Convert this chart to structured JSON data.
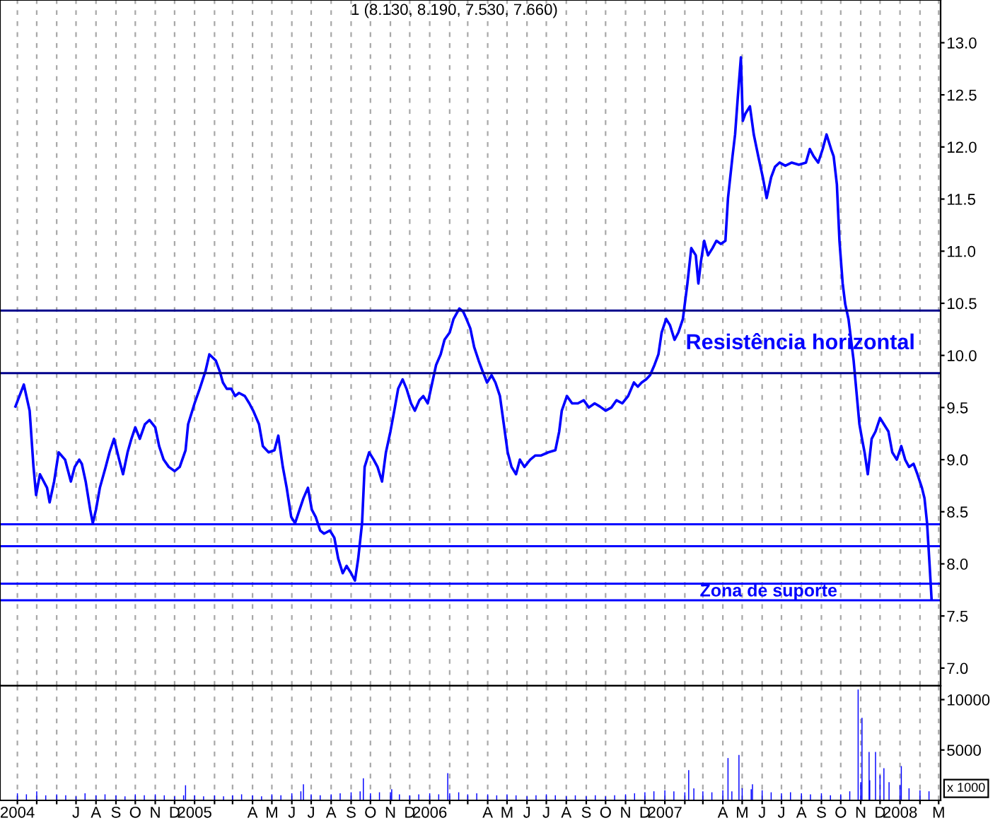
{
  "chart_data": [
    {
      "type": "line",
      "title": "1 (8.130, 8.190, 7.530, 7.660)",
      "xlim": [
        "2004-03-05",
        "2008-03-04"
      ],
      "ylim": [
        6.83,
        13.41
      ],
      "yticks": [
        {
          "value": 7.0,
          "label": "7.0"
        },
        {
          "value": 7.5,
          "label": "7.5"
        },
        {
          "value": 8.0,
          "label": "8.0"
        },
        {
          "value": 8.5,
          "label": "8.5"
        },
        {
          "value": 9.0,
          "label": "9.0"
        },
        {
          "value": 9.5,
          "label": "9.5"
        },
        {
          "value": 10.0,
          "label": "10.0"
        },
        {
          "value": 10.5,
          "label": "10.5"
        },
        {
          "value": 11.0,
          "label": "11.0"
        },
        {
          "value": 11.5,
          "label": "11.5"
        },
        {
          "value": 12.0,
          "label": "12.0"
        },
        {
          "value": 12.5,
          "label": "12.5"
        },
        {
          "value": 13.0,
          "label": "13.0"
        }
      ],
      "xticks": [
        {
          "value": "2004-04-01",
          "label": null
        },
        {
          "value": "2004-05-01",
          "label": null
        },
        {
          "value": "2004-06-01",
          "label": null
        },
        {
          "value": "2004-07-01",
          "label": null
        },
        {
          "value": "2004-08-01",
          "label": null
        },
        {
          "value": "2004-09-01",
          "label": null
        },
        {
          "value": "2004-10-01",
          "label": null
        },
        {
          "value": "2004-11-01",
          "label": null
        },
        {
          "value": "2004-12-01",
          "label": null
        },
        {
          "value": "2005-01-01",
          "label": null
        },
        {
          "value": "2005-02-01",
          "label": null
        },
        {
          "value": "2005-03-01",
          "label": null
        },
        {
          "value": "2005-04-01",
          "label": null
        },
        {
          "value": "2005-05-01",
          "label": null
        },
        {
          "value": "2005-06-01",
          "label": null
        },
        {
          "value": "2005-07-01",
          "label": null
        },
        {
          "value": "2005-08-01",
          "label": null
        },
        {
          "value": "2005-09-01",
          "label": null
        },
        {
          "value": "2005-10-01",
          "label": null
        },
        {
          "value": "2005-11-01",
          "label": null
        },
        {
          "value": "2005-12-01",
          "label": null
        },
        {
          "value": "2006-01-01",
          "label": null
        },
        {
          "value": "2006-02-01",
          "label": null
        },
        {
          "value": "2006-03-01",
          "label": null
        },
        {
          "value": "2006-04-01",
          "label": null
        },
        {
          "value": "2006-05-01",
          "label": null
        },
        {
          "value": "2006-06-01",
          "label": null
        },
        {
          "value": "2006-07-01",
          "label": null
        },
        {
          "value": "2006-08-01",
          "label": null
        },
        {
          "value": "2006-09-01",
          "label": null
        },
        {
          "value": "2006-10-01",
          "label": null
        },
        {
          "value": "2006-11-01",
          "label": null
        },
        {
          "value": "2006-12-01",
          "label": null
        },
        {
          "value": "2007-01-01",
          "label": null
        },
        {
          "value": "2007-02-01",
          "label": null
        },
        {
          "value": "2007-03-01",
          "label": null
        },
        {
          "value": "2007-04-01",
          "label": null
        },
        {
          "value": "2007-05-01",
          "label": null
        },
        {
          "value": "2007-06-01",
          "label": null
        },
        {
          "value": "2007-07-01",
          "label": null
        },
        {
          "value": "2007-08-01",
          "label": null
        },
        {
          "value": "2007-09-01",
          "label": null
        },
        {
          "value": "2007-10-01",
          "label": null
        },
        {
          "value": "2007-11-01",
          "label": null
        },
        {
          "value": "2007-12-01",
          "label": null
        },
        {
          "value": "2008-01-01",
          "label": null
        },
        {
          "value": "2008-02-01",
          "label": null
        },
        {
          "value": "2008-03-01",
          "label": null
        }
      ],
      "tick_labels": "y",
      "grid": "x",
      "series": [
        {
          "color": "#0000ff",
          "x": [
            "2004-03-29",
            "2004-04-11",
            "2004-04-20",
            "2004-04-26",
            "2004-04-30",
            "2004-05-06",
            "2004-05-17",
            "2004-05-21",
            "2004-05-28",
            "2004-06-04",
            "2004-06-14",
            "2004-06-23",
            "2004-06-29",
            "2004-07-06",
            "2004-07-10",
            "2004-07-16",
            "2004-07-23",
            "2004-07-27",
            "2004-08-01",
            "2004-08-07",
            "2004-08-16",
            "2004-08-22",
            "2004-08-29",
            "2004-09-06",
            "2004-09-12",
            "2004-09-19",
            "2004-09-25",
            "2004-10-01",
            "2004-10-08",
            "2004-10-16",
            "2004-10-23",
            "2004-11-01",
            "2004-11-07",
            "2004-11-14",
            "2004-11-22",
            "2004-12-01",
            "2004-12-09",
            "2004-12-18",
            "2004-12-22",
            "2005-01-01",
            "2005-01-09",
            "2005-01-18",
            "2005-01-24",
            "2005-02-03",
            "2005-02-09",
            "2005-02-14",
            "2005-02-20",
            "2005-02-27",
            "2005-03-05",
            "2005-03-11",
            "2005-03-20",
            "2005-03-27",
            "2005-04-02",
            "2005-04-11",
            "2005-04-17",
            "2005-04-26",
            "2005-05-05",
            "2005-05-11",
            "2005-05-18",
            "2005-05-24",
            "2005-05-31",
            "2005-06-06",
            "2005-06-13",
            "2005-06-19",
            "2005-06-26",
            "2005-07-02",
            "2005-07-08",
            "2005-07-15",
            "2005-07-21",
            "2005-07-30",
            "2005-08-06",
            "2005-08-12",
            "2005-08-19",
            "2005-08-25",
            "2005-09-01",
            "2005-09-07",
            "2005-09-12",
            "2005-09-18",
            "2005-09-22",
            "2005-09-29",
            "2005-10-06",
            "2005-10-12",
            "2005-10-19",
            "2005-10-25",
            "2005-11-01",
            "2005-11-07",
            "2005-11-13",
            "2005-11-20",
            "2005-11-26",
            "2005-12-03",
            "2005-12-09",
            "2005-12-16",
            "2005-12-22",
            "2005-12-29",
            "2006-01-05",
            "2006-01-11",
            "2006-01-18",
            "2006-01-24",
            "2006-02-01",
            "2006-02-07",
            "2006-02-16",
            "2006-02-22",
            "2006-02-27",
            "2006-03-05",
            "2006-03-11",
            "2006-03-18",
            "2006-03-24",
            "2006-03-31",
            "2006-04-07",
            "2006-04-13",
            "2006-04-20",
            "2006-04-26",
            "2006-05-02",
            "2006-05-08",
            "2006-05-15",
            "2006-05-21",
            "2006-05-28",
            "2006-06-06",
            "2006-06-14",
            "2006-06-23",
            "2006-07-04",
            "2006-07-15",
            "2006-07-21",
            "2006-07-25",
            "2006-08-02",
            "2006-08-10",
            "2006-08-19",
            "2006-08-28",
            "2006-09-05",
            "2006-09-14",
            "2006-09-22",
            "2006-10-01",
            "2006-10-10",
            "2006-10-18",
            "2006-10-27",
            "2006-11-05",
            "2006-11-14",
            "2006-11-20",
            "2006-11-26",
            "2006-12-03",
            "2006-12-09",
            "2006-12-16",
            "2006-12-22",
            "2006-12-27",
            "2007-01-03",
            "2007-01-09",
            "2007-01-16",
            "2007-01-22",
            "2007-01-29",
            "2007-02-05",
            "2007-02-11",
            "2007-02-18",
            "2007-02-22",
            "2007-02-26",
            "2007-03-03",
            "2007-03-09",
            "2007-03-16",
            "2007-03-22",
            "2007-03-29",
            "2007-04-05",
            "2007-04-09",
            "2007-04-16",
            "2007-04-20",
            "2007-04-24",
            "2007-04-29",
            "2007-05-02",
            "2007-05-06",
            "2007-05-13",
            "2007-05-19",
            "2007-05-26",
            "2007-06-02",
            "2007-06-08",
            "2007-06-15",
            "2007-06-21",
            "2007-06-28",
            "2007-07-07",
            "2007-07-17",
            "2007-07-28",
            "2007-08-08",
            "2007-08-14",
            "2007-08-20",
            "2007-08-27",
            "2007-09-03",
            "2007-09-09",
            "2007-09-16",
            "2007-09-20",
            "2007-09-25",
            "2007-09-29",
            "2007-10-04",
            "2007-10-08",
            "2007-10-13",
            "2007-10-17",
            "2007-10-21",
            "2007-10-26",
            "2007-10-30",
            "2007-11-03",
            "2007-11-07",
            "2007-11-12",
            "2007-11-18",
            "2007-11-24",
            "2007-12-01",
            "2007-12-07",
            "2007-12-14",
            "2007-12-20",
            "2007-12-27",
            "2008-01-03",
            "2008-01-09",
            "2008-01-15",
            "2008-01-22",
            "2008-01-28",
            "2008-02-04",
            "2008-02-08",
            "2008-02-12",
            "2008-02-16",
            "2008-02-19"
          ],
          "values": [
            9.51,
            9.72,
            9.47,
            8.93,
            8.66,
            8.86,
            8.73,
            8.59,
            8.79,
            9.07,
            9.0,
            8.79,
            8.93,
            9.0,
            8.96,
            8.79,
            8.52,
            8.39,
            8.52,
            8.73,
            8.93,
            9.07,
            9.2,
            9.0,
            8.86,
            9.07,
            9.2,
            9.31,
            9.2,
            9.34,
            9.38,
            9.31,
            9.13,
            9.0,
            8.93,
            8.89,
            8.93,
            9.09,
            9.34,
            9.54,
            9.68,
            9.85,
            10.01,
            9.95,
            9.85,
            9.74,
            9.68,
            9.68,
            9.61,
            9.64,
            9.61,
            9.54,
            9.47,
            9.34,
            9.13,
            9.07,
            9.09,
            9.23,
            8.93,
            8.73,
            8.45,
            8.39,
            8.52,
            8.63,
            8.73,
            8.52,
            8.45,
            8.32,
            8.29,
            8.32,
            8.25,
            8.05,
            7.91,
            7.98,
            7.91,
            7.84,
            8.05,
            8.39,
            8.93,
            9.07,
            9.0,
            8.93,
            8.79,
            9.07,
            9.27,
            9.47,
            9.68,
            9.77,
            9.68,
            9.54,
            9.47,
            9.57,
            9.61,
            9.54,
            9.74,
            9.91,
            10.01,
            10.15,
            10.22,
            10.35,
            10.45,
            10.42,
            10.35,
            10.26,
            10.08,
            9.95,
            9.85,
            9.74,
            9.81,
            9.74,
            9.61,
            9.34,
            9.07,
            8.93,
            8.86,
            9.0,
            8.93,
            9.0,
            9.04,
            9.04,
            9.07,
            9.09,
            9.27,
            9.47,
            9.61,
            9.54,
            9.54,
            9.57,
            9.5,
            9.54,
            9.51,
            9.47,
            9.5,
            9.57,
            9.54,
            9.61,
            9.74,
            9.7,
            9.74,
            9.77,
            9.81,
            9.91,
            10.01,
            10.22,
            10.35,
            10.29,
            10.15,
            10.22,
            10.35,
            10.69,
            11.03,
            10.96,
            10.69,
            10.9,
            11.1,
            10.96,
            11.03,
            11.1,
            11.07,
            11.1,
            11.51,
            11.91,
            12.12,
            12.46,
            12.86,
            12.25,
            12.32,
            12.39,
            12.12,
            11.91,
            11.71,
            11.51,
            11.71,
            11.81,
            11.85,
            11.82,
            11.85,
            11.83,
            11.85,
            11.98,
            11.91,
            11.85,
            11.98,
            12.12,
            11.98,
            11.91,
            11.64,
            11.1,
            10.69,
            10.49,
            10.35,
            10.15,
            9.95,
            9.61,
            9.34,
            9.2,
            9.07,
            8.86,
            9.2,
            9.27,
            9.4,
            9.34,
            9.27,
            9.07,
            9.0,
            9.13,
            9.0,
            8.93,
            8.96,
            8.86,
            8.73,
            8.63,
            8.39,
            7.98,
            7.66
          ]
        }
      ],
      "ref_lines": [
        {
          "axis": "y",
          "value": 10.43,
          "color": "#00008b"
        },
        {
          "axis": "y",
          "value": 9.83,
          "color": "#00008b"
        },
        {
          "axis": "y",
          "value": 8.38,
          "color": "#0000ff"
        },
        {
          "axis": "y",
          "value": 8.17,
          "color": "#0000ff"
        },
        {
          "axis": "y",
          "value": 7.81,
          "color": "#0000ff"
        },
        {
          "axis": "y",
          "value": 7.65,
          "color": "#0000ff"
        }
      ],
      "annotations": [
        "Resistência horizontal",
        "Zona de suporte"
      ]
    },
    {
      "type": "bar",
      "xlim": [
        "2004-03-05",
        "2008-03-04"
      ],
      "ylim": [
        0,
        11370
      ],
      "yticks": [
        5000,
        10000
      ],
      "xticks": [
        {
          "value": "2004-04-01",
          "label": "2004"
        },
        {
          "value": "2004-05-01",
          "label": null
        },
        {
          "value": "2004-06-01",
          "label": null
        },
        {
          "value": "2004-07-01",
          "label": "J"
        },
        {
          "value": "2004-08-01",
          "label": "A"
        },
        {
          "value": "2004-09-01",
          "label": "S"
        },
        {
          "value": "2004-10-01",
          "label": "O"
        },
        {
          "value": "2004-11-01",
          "label": "N"
        },
        {
          "value": "2004-12-01",
          "label": "D"
        },
        {
          "value": "2005-01-01",
          "label": "2005"
        },
        {
          "value": "2005-02-01",
          "label": null
        },
        {
          "value": "2005-03-01",
          "label": null
        },
        {
          "value": "2005-04-01",
          "label": "A"
        },
        {
          "value": "2005-05-01",
          "label": "M"
        },
        {
          "value": "2005-06-01",
          "label": "J"
        },
        {
          "value": "2005-07-01",
          "label": "J"
        },
        {
          "value": "2005-08-01",
          "label": "A"
        },
        {
          "value": "2005-09-01",
          "label": "S"
        },
        {
          "value": "2005-10-01",
          "label": "O"
        },
        {
          "value": "2005-11-01",
          "label": "N"
        },
        {
          "value": "2005-12-01",
          "label": "D"
        },
        {
          "value": "2006-01-01",
          "label": "2006"
        },
        {
          "value": "2006-02-01",
          "label": null
        },
        {
          "value": "2006-03-01",
          "label": null
        },
        {
          "value": "2006-04-01",
          "label": "A"
        },
        {
          "value": "2006-05-01",
          "label": "M"
        },
        {
          "value": "2006-06-01",
          "label": "J"
        },
        {
          "value": "2006-07-01",
          "label": "J"
        },
        {
          "value": "2006-08-01",
          "label": "A"
        },
        {
          "value": "2006-09-01",
          "label": "S"
        },
        {
          "value": "2006-10-01",
          "label": "O"
        },
        {
          "value": "2006-11-01",
          "label": "N"
        },
        {
          "value": "2006-12-01",
          "label": "D"
        },
        {
          "value": "2007-01-01",
          "label": "2007"
        },
        {
          "value": "2007-02-01",
          "label": null
        },
        {
          "value": "2007-03-01",
          "label": null
        },
        {
          "value": "2007-04-01",
          "label": "A"
        },
        {
          "value": "2007-05-01",
          "label": "M"
        },
        {
          "value": "2007-06-01",
          "label": "J"
        },
        {
          "value": "2007-07-01",
          "label": "J"
        },
        {
          "value": "2007-08-01",
          "label": "A"
        },
        {
          "value": "2007-09-01",
          "label": "S"
        },
        {
          "value": "2007-10-01",
          "label": "O"
        },
        {
          "value": "2007-11-01",
          "label": "N"
        },
        {
          "value": "2007-12-01",
          "label": "D"
        },
        {
          "value": "2008-01-01",
          "label": "2008"
        },
        {
          "value": "2008-02-01",
          "label": null
        },
        {
          "value": "2008-03-01",
          "label": "M"
        }
      ],
      "grid": "x",
      "series": [
        {
          "color": "#0000ff",
          "x": [
            "2004-04-01",
            "2004-04-15",
            "2004-05-01",
            "2004-05-15",
            "2004-06-01",
            "2004-06-15",
            "2004-07-01",
            "2004-07-15",
            "2004-08-01",
            "2004-08-15",
            "2004-09-01",
            "2004-09-15",
            "2004-10-01",
            "2004-10-15",
            "2004-11-01",
            "2004-11-15",
            "2004-12-01",
            "2004-12-15",
            "2005-01-01",
            "2005-01-15",
            "2005-02-01",
            "2005-02-15",
            "2005-03-01",
            "2005-03-15",
            "2005-04-01",
            "2005-04-15",
            "2005-05-01",
            "2005-05-15",
            "2005-06-01",
            "2005-06-15",
            "2005-07-01",
            "2005-07-15",
            "2005-08-01",
            "2005-08-15",
            "2005-09-01",
            "2005-09-15",
            "2005-10-01",
            "2005-10-15",
            "2005-11-01",
            "2005-11-15",
            "2005-12-01",
            "2005-12-15",
            "2006-01-01",
            "2006-01-15",
            "2006-02-01",
            "2006-02-15",
            "2006-03-01",
            "2006-03-15",
            "2006-04-01",
            "2006-04-15",
            "2006-05-01",
            "2006-05-15",
            "2006-06-01",
            "2006-06-15",
            "2006-07-01",
            "2006-07-15",
            "2006-08-01",
            "2006-08-15",
            "2006-09-01",
            "2006-09-15",
            "2006-10-01",
            "2006-10-15",
            "2006-11-01",
            "2006-11-15",
            "2006-12-01",
            "2006-12-15",
            "2007-01-01",
            "2007-01-15",
            "2007-02-01",
            "2007-02-15",
            "2007-03-01",
            "2007-03-15",
            "2007-04-01",
            "2007-04-15",
            "2007-05-01",
            "2007-05-15",
            "2007-06-01",
            "2007-06-15",
            "2007-07-01",
            "2007-07-15",
            "2007-08-01",
            "2007-08-15",
            "2007-09-01",
            "2007-09-15",
            "2007-10-01",
            "2007-10-15",
            "2007-11-01",
            "2007-11-15",
            "2007-12-01",
            "2007-12-15",
            "2008-01-01",
            "2008-01-15",
            "2008-02-01",
            "2008-02-15"
          ],
          "values": [
            700,
            600,
            900,
            500,
            600,
            500,
            400,
            700,
            500,
            600,
            500,
            400,
            600,
            500,
            600,
            500,
            400,
            500,
            500,
            400,
            500,
            400,
            500,
            600,
            500,
            400,
            600,
            500,
            700,
            900,
            600,
            500,
            600,
            700,
            800,
            900,
            700,
            800,
            800,
            600,
            500,
            600,
            700,
            600,
            700,
            800,
            600,
            700,
            600,
            500,
            600,
            500,
            400,
            500,
            600,
            500,
            400,
            500,
            400,
            500,
            400,
            500,
            600,
            700,
            800,
            900,
            1000,
            900,
            800,
            1200,
            900,
            800,
            1000,
            900,
            1200,
            1100,
            1000,
            800,
            700,
            800,
            700,
            600,
            700,
            500,
            600,
            900,
            1800,
            2000,
            2500,
            1800,
            1500,
            1200,
            1000,
            900
          ]
        },
        {
          "color": "#0000ff",
          "x": [
            "2004-12-18",
            "2005-06-19",
            "2005-09-20",
            "2005-11-03",
            "2006-01-29",
            "2007-02-07",
            "2007-04-09",
            "2007-04-26",
            "2007-05-17",
            "2007-10-28",
            "2007-11-03",
            "2007-11-14",
            "2007-11-24",
            "2007-12-07",
            "2008-01-03"
          ],
          "values": [
            1500,
            1600,
            2200,
            1100,
            2700,
            3000,
            4200,
            4500,
            1600,
            11000,
            8200,
            4800,
            4800,
            3200,
            3400
          ]
        }
      ],
      "annotations": [
        "x 1000"
      ]
    }
  ]
}
